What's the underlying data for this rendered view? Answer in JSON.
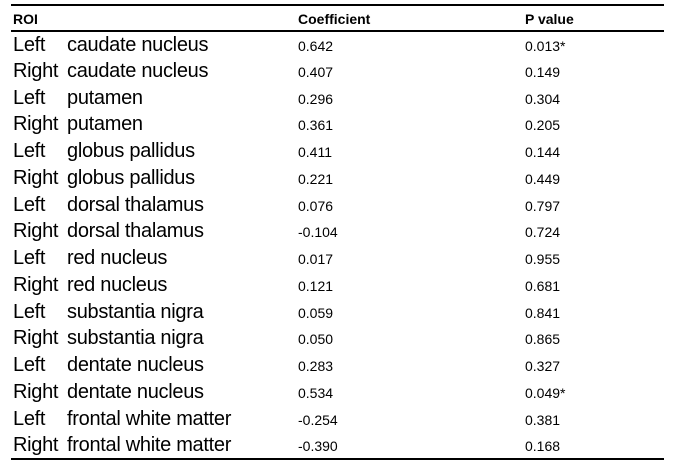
{
  "header": {
    "roi": "ROI",
    "coefficient": "Coefficient",
    "p_value": "P value"
  },
  "rows": [
    {
      "side": "Left",
      "region": "caudate nucleus",
      "coefficient": "0.642",
      "p_value": "0.013*"
    },
    {
      "side": "Right",
      "region": "caudate nucleus",
      "coefficient": "0.407",
      "p_value": "0.149"
    },
    {
      "side": "Left",
      "region": "putamen",
      "coefficient": "0.296",
      "p_value": "0.304"
    },
    {
      "side": "Right",
      "region": "putamen",
      "coefficient": "0.361",
      "p_value": "0.205"
    },
    {
      "side": "Left",
      "region": "globus pallidus",
      "coefficient": "0.411",
      "p_value": "0.144"
    },
    {
      "side": "Right",
      "region": "globus pallidus",
      "coefficient": "0.221",
      "p_value": "0.449"
    },
    {
      "side": "Left",
      "region": "dorsal thalamus",
      "coefficient": "0.076",
      "p_value": "0.797"
    },
    {
      "side": "Right",
      "region": "dorsal thalamus",
      "coefficient": "-0.104",
      "p_value": "0.724"
    },
    {
      "side": "Left",
      "region": "red nucleus",
      "coefficient": "0.017",
      "p_value": "0.955"
    },
    {
      "side": "Right",
      "region": "red nucleus",
      "coefficient": "0.121",
      "p_value": "0.681"
    },
    {
      "side": "Left",
      "region": "substantia nigra",
      "coefficient": "0.059",
      "p_value": "0.841"
    },
    {
      "side": "Right",
      "region": "substantia nigra",
      "coefficient": "0.050",
      "p_value": "0.865"
    },
    {
      "side": "Left",
      "region": "dentate nucleus",
      "coefficient": "0.283",
      "p_value": "0.327"
    },
    {
      "side": "Right",
      "region": "dentate nucleus",
      "coefficient": "0.534",
      "p_value": "0.049*"
    },
    {
      "side": "Left",
      "region": "frontal white matter",
      "coefficient": "-0.254",
      "p_value": "0.381"
    },
    {
      "side": "Right",
      "region": "frontal white matter",
      "coefficient": "-0.390",
      "p_value": "0.168"
    }
  ],
  "chart_data": {
    "type": "table",
    "columns": [
      "ROI",
      "Coefficient",
      "P value"
    ],
    "rows": [
      [
        "Left caudate nucleus",
        0.642,
        "0.013*"
      ],
      [
        "Right caudate nucleus",
        0.407,
        "0.149"
      ],
      [
        "Left putamen",
        0.296,
        "0.304"
      ],
      [
        "Right putamen",
        0.361,
        "0.205"
      ],
      [
        "Left globus pallidus",
        0.411,
        "0.144"
      ],
      [
        "Right globus pallidus",
        0.221,
        "0.449"
      ],
      [
        "Left dorsal thalamus",
        0.076,
        "0.797"
      ],
      [
        "Right dorsal thalamus",
        -0.104,
        "0.724"
      ],
      [
        "Left red nucleus",
        0.017,
        "0.955"
      ],
      [
        "Right red nucleus",
        0.121,
        "0.681"
      ],
      [
        "Left substantia nigra",
        0.059,
        "0.841"
      ],
      [
        "Right substantia nigra",
        0.05,
        "0.865"
      ],
      [
        "Left dentate nucleus",
        0.283,
        "0.327"
      ],
      [
        "Right dentate nucleus",
        0.534,
        "0.049*"
      ],
      [
        "Left frontal white matter",
        -0.254,
        "0.381"
      ],
      [
        "Right frontal white matter",
        -0.39,
        "0.168"
      ]
    ]
  }
}
